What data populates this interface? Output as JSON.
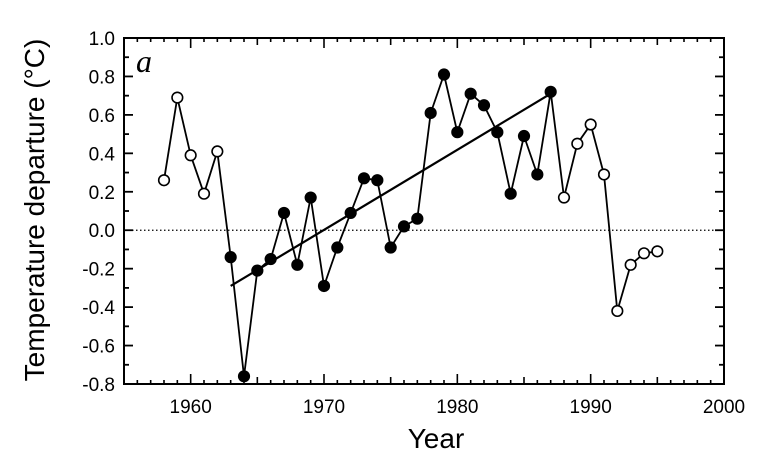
{
  "chart_data": {
    "type": "line",
    "panel_label": "a",
    "xlabel": "Year",
    "ylabel": "Temperature departure (°C)",
    "xlim": [
      1955,
      2000
    ],
    "ylim": [
      -0.8,
      1.0
    ],
    "x_ticks": [
      1960,
      1970,
      1980,
      1990,
      2000
    ],
    "x_tick_labels": [
      "1960",
      "1970",
      "1980",
      "1990",
      "2000"
    ],
    "y_ticks": [
      1.0,
      0.8,
      0.6,
      0.4,
      0.2,
      0.0,
      -0.2,
      -0.4,
      -0.6,
      -0.8
    ],
    "y_tick_labels": [
      "1.0",
      "0.8",
      "0.6",
      "0.4",
      "0.2",
      "0.0",
      "-0.2",
      "-0.4",
      "-0.6",
      "-0.8"
    ],
    "zero_reference_line": true,
    "grid": false,
    "series": [
      {
        "x": [
          1958,
          1959,
          1960,
          1961,
          1962,
          1963,
          1964,
          1965,
          1966,
          1967,
          1968,
          1969,
          1970,
          1971,
          1972,
          1973,
          1974,
          1975,
          1976,
          1977,
          1978,
          1979,
          1980,
          1981,
          1982,
          1983,
          1984,
          1985,
          1986,
          1987,
          1988,
          1989,
          1990,
          1991,
          1992,
          1993,
          1994,
          1995
        ],
        "y": [
          0.26,
          0.69,
          0.39,
          0.19,
          0.41,
          -0.14,
          -0.76,
          -0.21,
          -0.15,
          0.09,
          -0.18,
          0.17,
          -0.29,
          -0.09,
          0.09,
          0.27,
          0.26,
          -0.09,
          0.02,
          0.06,
          0.61,
          0.81,
          0.51,
          0.71,
          0.65,
          0.51,
          0.19,
          0.49,
          0.29,
          0.72,
          0.17,
          0.45,
          0.55,
          0.29,
          -0.42,
          -0.18,
          -0.12,
          -0.11
        ],
        "filled": [
          false,
          false,
          false,
          false,
          false,
          true,
          true,
          true,
          true,
          true,
          true,
          true,
          true,
          true,
          true,
          true,
          true,
          true,
          true,
          true,
          true,
          true,
          true,
          true,
          true,
          true,
          true,
          true,
          true,
          true,
          false,
          false,
          false,
          false,
          false,
          false,
          false,
          false
        ]
      }
    ],
    "trend_line": {
      "x": [
        1963,
        1987
      ],
      "y": [
        -0.29,
        0.71
      ]
    }
  }
}
